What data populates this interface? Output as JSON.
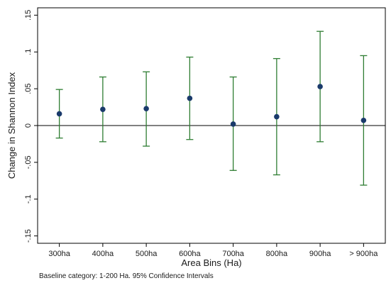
{
  "chart_data": {
    "type": "scatter",
    "subtype": "point-estimate-with-confidence-intervals",
    "categories": [
      "300ha",
      "400ha",
      "500ha",
      "600ha",
      "700ha",
      "800ha",
      "900ha",
      "> 900ha"
    ],
    "estimates": [
      0.016,
      0.022,
      0.023,
      0.037,
      0.002,
      0.012,
      0.053,
      0.007
    ],
    "ci_lower": [
      -0.017,
      -0.022,
      -0.028,
      -0.019,
      -0.061,
      -0.067,
      -0.022,
      -0.081
    ],
    "ci_upper": [
      0.049,
      0.066,
      0.073,
      0.093,
      0.066,
      0.091,
      0.128,
      0.095
    ],
    "xlabel": "Area Bins (Ha)",
    "ylabel": "Change in Shannon Index",
    "ylim": [
      -0.16,
      0.16
    ],
    "yticks": [
      -0.15,
      -0.1,
      -0.05,
      0,
      0.05,
      0.1,
      0.15
    ],
    "ytick_labels": [
      "-.15",
      "-.1",
      "-.05",
      "0",
      ".05",
      ".1",
      ".15"
    ],
    "zero_line": true,
    "grid": false,
    "note": "Baseline category: 1-200 Ha. 95% Confidence Intervals",
    "colors": {
      "point": "#1a3a6b",
      "ci": "#2e7d32",
      "axis": "#000000"
    }
  }
}
